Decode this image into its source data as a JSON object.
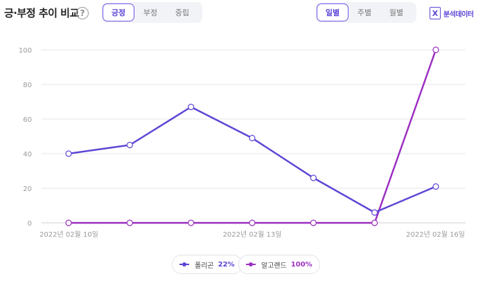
{
  "header": {
    "title": "긍·부정 추이 비교",
    "help_icon": "question-circle-icon",
    "sentiment_tabs": [
      "긍정",
      "부정",
      "중립"
    ],
    "sentiment_selected": "긍정",
    "period_tabs": [
      "일별",
      "주별",
      "월별"
    ],
    "period_selected": "일별",
    "analysis_label": "분석데이터",
    "analysis_icon": "excel-icon"
  },
  "legend": [
    {
      "name": "폴리곤",
      "percent": "22%",
      "color": "#5b46d6"
    },
    {
      "name": "알고랜드",
      "percent": "100%",
      "color": "#9b2fc1"
    }
  ],
  "chart_data": {
    "type": "line",
    "x": [
      "2022년 02월 10일",
      "2022년 02월 11일",
      "2022년 02월 12일",
      "2022년 02월 13일",
      "2022년 02월 14일",
      "2022년 02월 15일",
      "2022년 02월 16일"
    ],
    "x_tick_labels": [
      "2022년 02월 10일",
      "2022년 02월 13일",
      "2022년 02월 16일"
    ],
    "y_ticks": [
      0,
      20,
      40,
      60,
      80,
      100
    ],
    "ylim": [
      0,
      100
    ],
    "grid": true,
    "series": [
      {
        "name": "폴리곤",
        "color": "#5b46d6",
        "values": [
          40,
          45,
          67,
          49,
          26,
          6,
          21
        ]
      },
      {
        "name": "알고랜드",
        "color": "#9b2fc1",
        "values": [
          0,
          0,
          0,
          0,
          0,
          0,
          100
        ]
      }
    ]
  }
}
